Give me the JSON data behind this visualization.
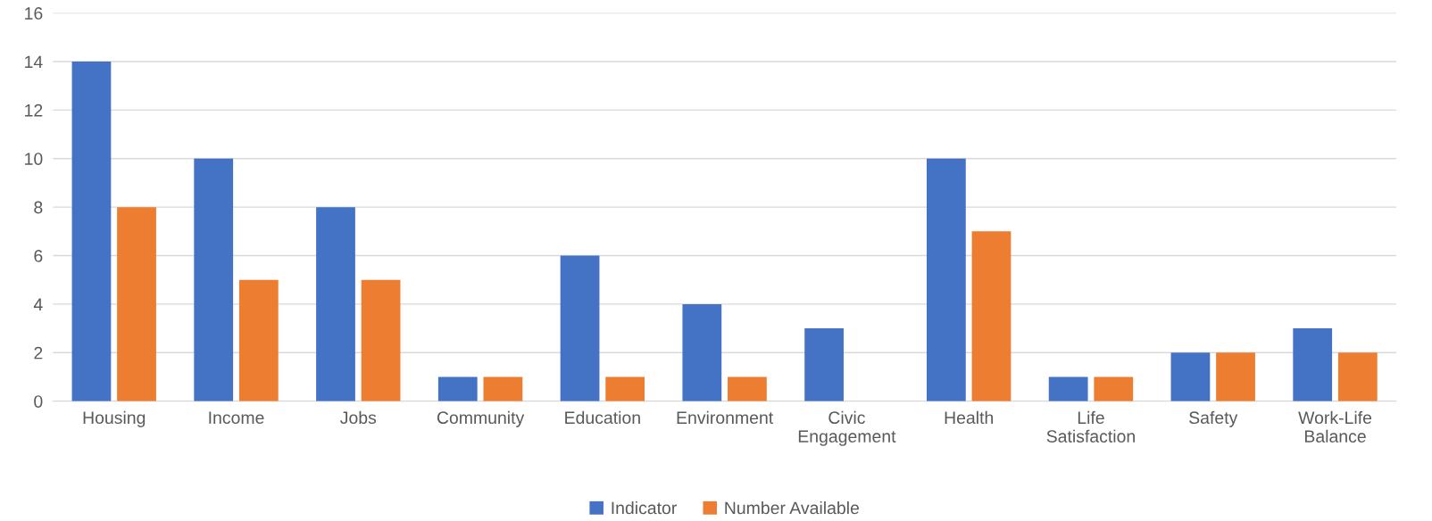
{
  "chart_data": {
    "type": "bar",
    "categories": [
      "Housing",
      "Income",
      "Jobs",
      "Community",
      "Education",
      "Environment",
      "Civic\nEngagement",
      "Health",
      "Life\nSatisfaction",
      "Safety",
      "Work-Life\nBalance"
    ],
    "series": [
      {
        "name": "Indicator",
        "color": "#4472c4",
        "values": [
          14,
          10,
          8,
          1,
          6,
          4,
          3,
          10,
          1,
          2,
          3
        ]
      },
      {
        "name": "Number Available",
        "color": "#ed7d31",
        "values": [
          8,
          5,
          5,
          1,
          1,
          1,
          0,
          7,
          1,
          2,
          2
        ]
      }
    ],
    "ylim": [
      0,
      16
    ],
    "yticks": [
      0,
      2,
      4,
      6,
      8,
      10,
      12,
      14,
      16
    ],
    "grid": "y",
    "legend": "bottom"
  }
}
